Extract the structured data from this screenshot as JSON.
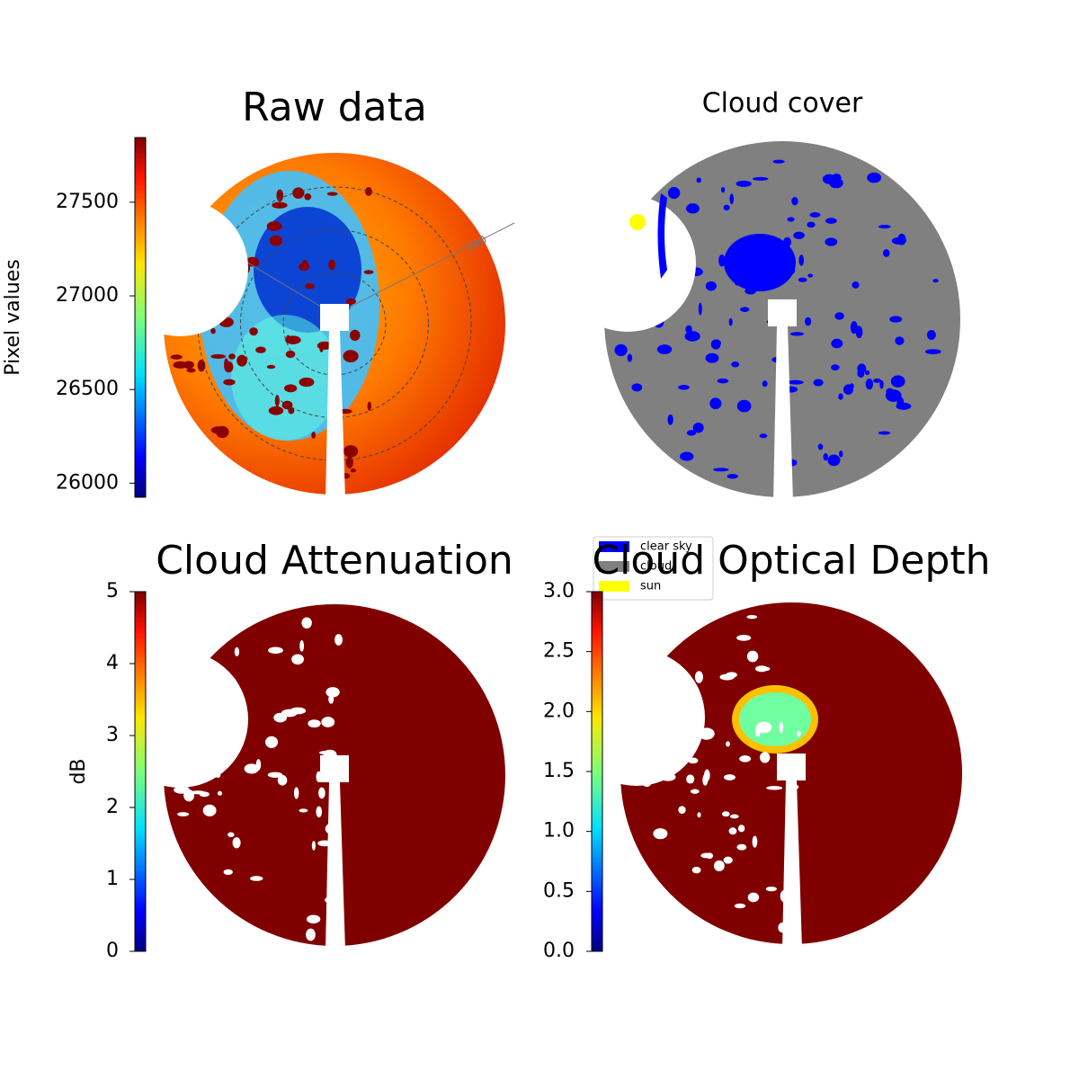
{
  "chart_data": [
    {
      "type": "image",
      "title": "Raw data",
      "colormap": "jet",
      "colorbar_label": "Pixel values",
      "ylim": [
        25925,
        27845
      ],
      "yticks": [
        26000,
        26500,
        27000,
        27500
      ],
      "polar_labels": [
        "120",
        "240"
      ]
    },
    {
      "type": "classification",
      "title": "Cloud cover",
      "series": [
        {
          "name": "clear sky",
          "color": "#0000ff"
        },
        {
          "name": "cloud",
          "color": "#808080"
        },
        {
          "name": "sun",
          "color": "#ffff00"
        }
      ]
    },
    {
      "type": "image",
      "title": "Cloud Attenuation",
      "colormap": "jet",
      "colorbar_label": "dB",
      "ylim": [
        0,
        5
      ],
      "yticks": [
        0,
        1,
        2,
        3,
        4,
        5
      ]
    },
    {
      "type": "image",
      "title": "Cloud Optical Depth",
      "colormap": "jet",
      "ylim": [
        0,
        3
      ],
      "yticks": [
        {
          "value": 0,
          "label": "0.0"
        },
        {
          "value": 0.5,
          "label": "0.5"
        },
        {
          "value": 1,
          "label": "1.0"
        },
        {
          "value": 1.5,
          "label": "1.5"
        },
        {
          "value": 2,
          "label": "2.0"
        },
        {
          "value": 2.5,
          "label": "2.5"
        },
        {
          "value": 3,
          "label": "3.0"
        }
      ]
    }
  ]
}
